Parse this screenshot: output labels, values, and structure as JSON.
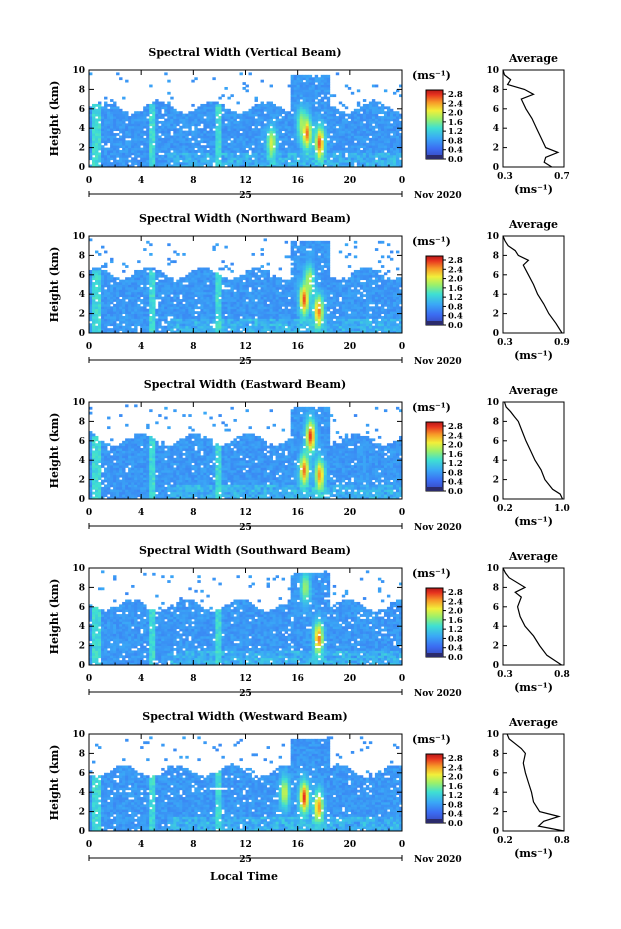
{
  "colorbar_unit": "(ms⁻¹)",
  "colorbar_ticks": [
    "2.8",
    "2.4",
    "2.0",
    "1.6",
    "1.2",
    "0.8",
    "0.4",
    "0.0"
  ],
  "height_label": "Height (km)",
  "height_ticks": [
    "0",
    "2",
    "4",
    "6",
    "8",
    "10"
  ],
  "hour_ticks": [
    "0",
    "4",
    "8",
    "12",
    "16",
    "20",
    "0"
  ],
  "day_label": "25",
  "month_label": "Nov 2020",
  "average_title": "Average",
  "average_unit": "(ms⁻¹)",
  "xlabel": "Local Time",
  "chart_data": [
    {
      "type": "heatmap",
      "title": "Spectral Width (Vertical Beam)",
      "xlabel": "",
      "ylabel": "Height (km)",
      "x_range_hours": [
        0,
        24
      ],
      "ylim": [
        0,
        10
      ],
      "zlim": [
        0,
        3.0
      ],
      "hotspots": [
        {
          "t": 16.7,
          "h": 3.5,
          "v": 2.6
        },
        {
          "t": 17.7,
          "h": 2.5,
          "v": 2.7
        },
        {
          "t": 16.3,
          "h": 4.5,
          "v": 1.8
        },
        {
          "t": 14.0,
          "h": 2.5,
          "v": 2.0
        }
      ],
      "average_profile": {
        "xlim": [
          0.3,
          0.7
        ],
        "xticks": [
          "0.3",
          "0.7"
        ],
        "height": [
          0,
          0.5,
          1,
          1.5,
          2,
          3,
          4,
          5,
          6,
          7,
          7.5,
          8,
          8.5,
          9,
          9.5,
          10
        ],
        "value": [
          0.62,
          0.57,
          0.58,
          0.66,
          0.58,
          0.55,
          0.52,
          0.49,
          0.45,
          0.42,
          0.5,
          0.44,
          0.33,
          0.35,
          0.31,
          0.3
        ]
      }
    },
    {
      "type": "heatmap",
      "title": "Spectral Width (Northward Beam)",
      "xlabel": "",
      "ylabel": "Height (km)",
      "x_range_hours": [
        0,
        24
      ],
      "ylim": [
        0,
        10
      ],
      "zlim": [
        0,
        3.0
      ],
      "hotspots": [
        {
          "t": 16.5,
          "h": 3.5,
          "v": 2.7
        },
        {
          "t": 17.6,
          "h": 2.3,
          "v": 2.6
        },
        {
          "t": 16.9,
          "h": 5.5,
          "v": 1.9
        }
      ],
      "average_profile": {
        "xlim": [
          0.3,
          0.9
        ],
        "xticks": [
          "0.3",
          "0.9"
        ],
        "height": [
          0,
          1,
          2,
          3,
          4,
          5,
          6,
          7,
          7.5,
          8,
          8.5,
          9,
          9.5,
          10
        ],
        "value": [
          0.88,
          0.82,
          0.75,
          0.7,
          0.64,
          0.6,
          0.55,
          0.5,
          0.55,
          0.45,
          0.42,
          0.35,
          0.32,
          0.3
        ]
      }
    },
    {
      "type": "heatmap",
      "title": "Spectral Width (Eastward Beam)",
      "xlabel": "",
      "ylabel": "Height (km)",
      "x_range_hours": [
        0,
        24
      ],
      "ylim": [
        0,
        10
      ],
      "zlim": [
        0,
        3.0
      ],
      "hotspots": [
        {
          "t": 17.0,
          "h": 6.5,
          "v": 2.8
        },
        {
          "t": 16.5,
          "h": 3.0,
          "v": 2.6
        },
        {
          "t": 17.7,
          "h": 2.5,
          "v": 2.5
        }
      ],
      "average_profile": {
        "xlim": [
          0.2,
          1.0
        ],
        "xticks": [
          "0.2",
          "1.0"
        ],
        "height": [
          0,
          0.5,
          1,
          2,
          3,
          4,
          5,
          6,
          7,
          8,
          8.5,
          9,
          9.5,
          10
        ],
        "value": [
          0.98,
          0.95,
          0.85,
          0.75,
          0.7,
          0.62,
          0.56,
          0.5,
          0.45,
          0.4,
          0.35,
          0.3,
          0.24,
          0.22
        ]
      }
    },
    {
      "type": "heatmap",
      "title": "Spectral Width (Southward Beam)",
      "xlabel": "",
      "ylabel": "Height (km)",
      "x_range_hours": [
        0,
        24
      ],
      "ylim": [
        0,
        10
      ],
      "zlim": [
        0,
        3.0
      ],
      "hotspots": [
        {
          "t": 17.6,
          "h": 2.8,
          "v": 2.6
        },
        {
          "t": 16.6,
          "h": 8.0,
          "v": 1.8
        }
      ],
      "average_profile": {
        "xlim": [
          0.3,
          0.8
        ],
        "xticks": [
          "0.3",
          "0.8"
        ],
        "height": [
          0,
          0.5,
          1,
          2,
          3,
          4,
          5,
          6,
          7,
          7.5,
          8,
          9,
          9.5,
          10
        ],
        "value": [
          0.78,
          0.72,
          0.66,
          0.6,
          0.55,
          0.48,
          0.44,
          0.42,
          0.45,
          0.4,
          0.48,
          0.35,
          0.32,
          0.3
        ]
      }
    },
    {
      "type": "heatmap",
      "title": "Spectral Width (Westward Beam)",
      "xlabel": "Local Time",
      "ylabel": "Height (km)",
      "x_range_hours": [
        0,
        24
      ],
      "ylim": [
        0,
        10
      ],
      "zlim": [
        0,
        3.0
      ],
      "hotspots": [
        {
          "t": 16.5,
          "h": 3.5,
          "v": 2.8
        },
        {
          "t": 17.6,
          "h": 2.5,
          "v": 2.5
        },
        {
          "t": 15.0,
          "h": 4.0,
          "v": 2.0
        }
      ],
      "average_profile": {
        "xlim": [
          0.2,
          0.8
        ],
        "xticks": [
          "0.2",
          "0.8"
        ],
        "height": [
          0,
          0.5,
          1,
          1.5,
          2,
          3,
          4,
          5,
          6,
          7,
          8,
          8.5,
          9,
          9.5,
          10
        ],
        "value": [
          0.8,
          0.55,
          0.6,
          0.75,
          0.56,
          0.5,
          0.48,
          0.45,
          0.42,
          0.4,
          0.42,
          0.38,
          0.32,
          0.26,
          0.24
        ]
      }
    }
  ]
}
